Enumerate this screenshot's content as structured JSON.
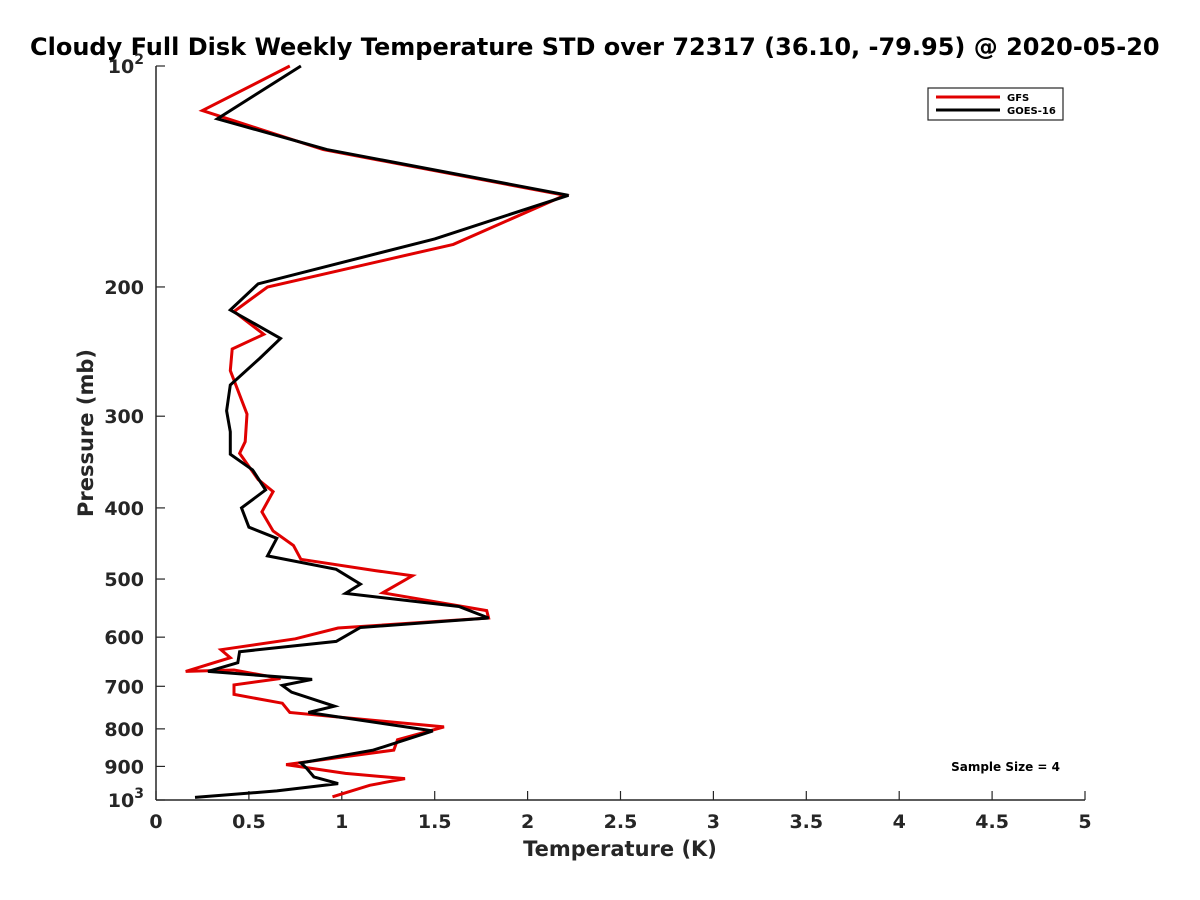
{
  "chart_data": {
    "type": "line",
    "title": "Cloudy Full Disk Weekly Temperature STD over 72317 (36.10, -79.95) @ 2020-05-20",
    "xlabel": "Temperature (K)",
    "ylabel": "Pressure (mb)",
    "xlim": [
      0,
      5
    ],
    "ylim": [
      1000,
      100
    ],
    "yscale": "log",
    "x_ticks": [
      "0",
      "0.5",
      "1",
      "1.5",
      "2",
      "2.5",
      "3",
      "3.5",
      "4",
      "4.5",
      "5"
    ],
    "y_ticks": [
      {
        "value": 100,
        "label": "10",
        "sup": "2"
      },
      {
        "value": 200,
        "label": "200"
      },
      {
        "value": 300,
        "label": "300"
      },
      {
        "value": 400,
        "label": "400"
      },
      {
        "value": 500,
        "label": "500"
      },
      {
        "value": 600,
        "label": "600"
      },
      {
        "value": 700,
        "label": "700"
      },
      {
        "value": 800,
        "label": "800"
      },
      {
        "value": 900,
        "label": "900"
      },
      {
        "value": 1000,
        "label": "10",
        "sup": "3"
      }
    ],
    "legend_position": "top-right",
    "annotation": "Sample Size = 4",
    "grid": false,
    "series": [
      {
        "name": "GFS",
        "color": "#e00000",
        "points": [
          [
            0.72,
            100
          ],
          [
            0.25,
            115
          ],
          [
            0.9,
            130
          ],
          [
            2.2,
            150
          ],
          [
            1.6,
            175
          ],
          [
            0.6,
            200
          ],
          [
            0.42,
            216
          ],
          [
            0.58,
            232
          ],
          [
            0.41,
            243
          ],
          [
            0.4,
            260
          ],
          [
            0.49,
            298
          ],
          [
            0.48,
            325
          ],
          [
            0.45,
            337
          ],
          [
            0.55,
            366
          ],
          [
            0.63,
            380
          ],
          [
            0.57,
            405
          ],
          [
            0.63,
            430
          ],
          [
            0.74,
            450
          ],
          [
            0.78,
            470
          ],
          [
            1.18,
            487
          ],
          [
            1.38,
            495
          ],
          [
            1.22,
            522
          ],
          [
            1.78,
            552
          ],
          [
            1.79,
            565
          ],
          [
            0.98,
            583
          ],
          [
            0.75,
            603
          ],
          [
            0.35,
            624
          ],
          [
            0.4,
            640
          ],
          [
            0.16,
            668
          ],
          [
            0.42,
            665
          ],
          [
            0.67,
            683
          ],
          [
            0.42,
            697
          ],
          [
            0.42,
            718
          ],
          [
            0.68,
            738
          ],
          [
            0.72,
            760
          ],
          [
            1.55,
            795
          ],
          [
            1.3,
            828
          ],
          [
            1.28,
            855
          ],
          [
            0.7,
            895
          ],
          [
            1.02,
            920
          ],
          [
            1.34,
            935
          ],
          [
            1.15,
            955
          ],
          [
            0.95,
            990
          ]
        ]
      },
      {
        "name": "GOES-16",
        "color": "#000000",
        "points": [
          [
            0.78,
            100
          ],
          [
            0.33,
            118
          ],
          [
            0.92,
            130
          ],
          [
            2.22,
            150
          ],
          [
            1.5,
            172
          ],
          [
            0.55,
            198
          ],
          [
            0.4,
            215
          ],
          [
            0.67,
            235
          ],
          [
            0.56,
            250
          ],
          [
            0.4,
            272
          ],
          [
            0.38,
            295
          ],
          [
            0.4,
            315
          ],
          [
            0.4,
            338
          ],
          [
            0.52,
            355
          ],
          [
            0.59,
            378
          ],
          [
            0.46,
            400
          ],
          [
            0.5,
            425
          ],
          [
            0.65,
            440
          ],
          [
            0.6,
            465
          ],
          [
            0.97,
            485
          ],
          [
            1.1,
            508
          ],
          [
            1.02,
            523
          ],
          [
            1.63,
            545
          ],
          [
            1.79,
            565
          ],
          [
            1.1,
            582
          ],
          [
            0.97,
            608
          ],
          [
            0.45,
            628
          ],
          [
            0.44,
            650
          ],
          [
            0.28,
            668
          ],
          [
            0.84,
            685
          ],
          [
            0.68,
            698
          ],
          [
            0.73,
            713
          ],
          [
            0.96,
            745
          ],
          [
            0.82,
            760
          ],
          [
            1.49,
            805
          ],
          [
            1.17,
            855
          ],
          [
            0.78,
            890
          ],
          [
            0.81,
            905
          ],
          [
            0.85,
            930
          ],
          [
            0.98,
            950
          ],
          [
            0.65,
            972
          ],
          [
            0.21,
            992
          ]
        ]
      }
    ]
  }
}
